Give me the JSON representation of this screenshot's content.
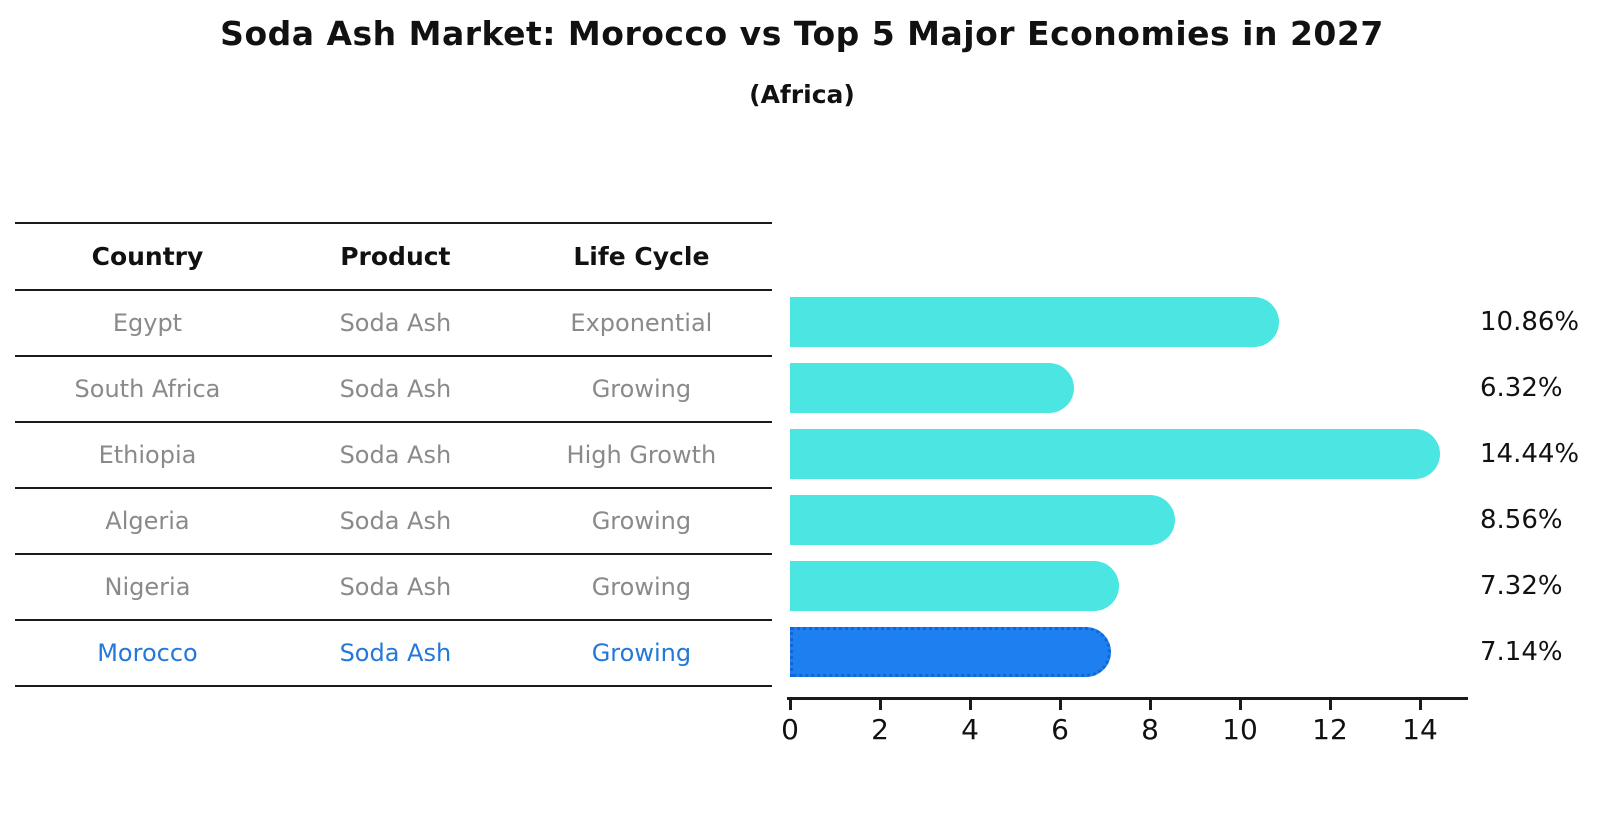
{
  "title": "Soda Ash Market: Morocco vs Top 5 Major Economies in 2027",
  "subtitle": "(Africa)",
  "table": {
    "headers": [
      "Country",
      "Product",
      "Life Cycle"
    ],
    "rows": [
      {
        "country": "Egypt",
        "product": "Soda Ash",
        "life_cycle": "Exponential",
        "highlight": false
      },
      {
        "country": "South Africa",
        "product": "Soda Ash",
        "life_cycle": "Growing",
        "highlight": false
      },
      {
        "country": "Ethiopia",
        "product": "Soda Ash",
        "life_cycle": "High Growth",
        "highlight": false
      },
      {
        "country": "Algeria",
        "product": "Soda Ash",
        "life_cycle": "Growing",
        "highlight": false
      },
      {
        "country": "Nigeria",
        "product": "Soda Ash",
        "life_cycle": "Growing",
        "highlight": true
      }
    ]
  },
  "chart_data": {
    "type": "bar",
    "orientation": "horizontal",
    "title": "Soda Ash Market: Morocco vs Top 5 Major Economies in 2027 (Africa)",
    "categories": [
      "Egypt",
      "South Africa",
      "Ethiopia",
      "Algeria",
      "Nigeria",
      "Morocco"
    ],
    "values": [
      10.86,
      6.32,
      14.44,
      8.56,
      7.32,
      7.14
    ],
    "value_labels": [
      "10.86%",
      "6.32%",
      "14.44%",
      "8.56%",
      "7.32%",
      "7.14%"
    ],
    "xlim": [
      0,
      15
    ],
    "x_ticks": [
      0,
      2,
      4,
      6,
      8,
      10,
      12,
      14
    ],
    "highlight_index": 5,
    "legend": "none",
    "grid": false
  },
  "colors": {
    "bar": "#4be6e2",
    "highlight_bar": "#1e80f0",
    "highlight_text": "#2478d9",
    "row_text": "#8a8a8a",
    "axis": "#1a1a1a"
  }
}
